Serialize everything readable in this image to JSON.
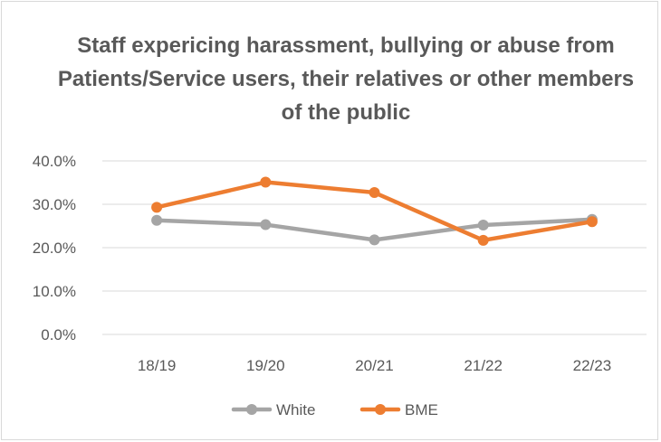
{
  "chart_data": {
    "type": "line",
    "title": "Staff expericing harassment, bullying or abuse from Patients/Service users, their relatives or other members of the public",
    "xlabel": "",
    "ylabel": "",
    "categories": [
      "18/19",
      "19/20",
      "20/21",
      "21/22",
      "22/23"
    ],
    "series": [
      {
        "name": "White",
        "color": "#a5a5a5",
        "values": [
          26.3,
          25.3,
          21.8,
          25.2,
          26.5
        ]
      },
      {
        "name": "BME",
        "color": "#ed7d31",
        "values": [
          29.3,
          35.1,
          32.7,
          21.7,
          26.0
        ]
      }
    ],
    "ylim": [
      0,
      40
    ],
    "y_ticks": [
      0,
      10,
      20,
      30,
      40
    ],
    "y_tick_labels": [
      "0.0%",
      "10.0%",
      "20.0%",
      "30.0%",
      "40.0%"
    ],
    "grid": true,
    "legend": "bottom"
  }
}
